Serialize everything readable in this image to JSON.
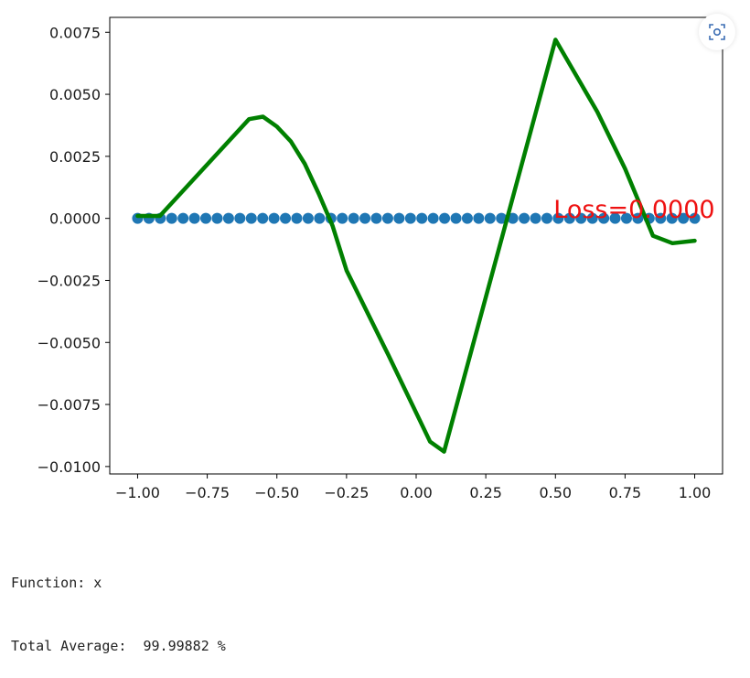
{
  "chart_data": {
    "type": "line",
    "xlim": [
      -1.1,
      1.1
    ],
    "ylim": [
      -0.0103,
      0.0081
    ],
    "xticks": [
      -1.0,
      -0.75,
      -0.5,
      -0.25,
      0.0,
      0.25,
      0.5,
      0.75,
      1.0
    ],
    "xtick_labels": [
      "−1.00",
      "−0.75",
      "−0.50",
      "−0.25",
      "0.00",
      "0.25",
      "0.50",
      "0.75",
      "1.00"
    ],
    "yticks": [
      0.0075,
      0.005,
      0.0025,
      0.0,
      -0.0025,
      -0.005,
      -0.0075,
      -0.01
    ],
    "ytick_labels": [
      "0.0075",
      "0.0050",
      "0.0025",
      "0.0000",
      "−0.0025",
      "−0.0050",
      "−0.0075",
      "−0.0100"
    ],
    "grid": false,
    "series": [
      {
        "kind": "scatter",
        "color": "#1f77b4",
        "x": [
          -1.0,
          -0.9592,
          -0.9184,
          -0.8776,
          -0.8367,
          -0.7959,
          -0.7551,
          -0.7143,
          -0.6735,
          -0.6327,
          -0.5918,
          -0.551,
          -0.5102,
          -0.4694,
          -0.4286,
          -0.3878,
          -0.3469,
          -0.3061,
          -0.2653,
          -0.2245,
          -0.1837,
          -0.1429,
          -0.102,
          -0.0612,
          -0.0204,
          0.0204,
          0.0612,
          0.102,
          0.1429,
          0.1837,
          0.2245,
          0.2653,
          0.3061,
          0.3469,
          0.3878,
          0.4286,
          0.4694,
          0.5102,
          0.551,
          0.5918,
          0.6327,
          0.6735,
          0.7143,
          0.7551,
          0.7959,
          0.8367,
          0.8776,
          0.9184,
          0.9592,
          1.0
        ],
        "y": [
          0,
          0,
          0,
          0,
          0,
          0,
          0,
          0,
          0,
          0,
          0,
          0,
          0,
          0,
          0,
          0,
          0,
          0,
          0,
          0,
          0,
          0,
          0,
          0,
          0,
          0,
          0,
          0,
          0,
          0,
          0,
          0,
          0,
          0,
          0,
          0,
          0,
          0,
          0,
          0,
          0,
          0,
          0,
          0,
          0,
          0,
          0,
          0,
          0,
          0
        ]
      },
      {
        "kind": "line",
        "color": "#008000",
        "x": [
          -1.0,
          -0.96,
          -0.92,
          -0.6,
          -0.55,
          -0.5,
          -0.45,
          -0.4,
          -0.35,
          -0.3,
          -0.25,
          -0.1,
          0.05,
          0.1,
          0.5,
          0.65,
          0.75,
          0.85,
          0.92,
          1.0
        ],
        "y": [
          0.0001,
          0.0001,
          0.0001,
          0.004,
          0.0041,
          0.0037,
          0.0031,
          0.0022,
          0.001,
          -0.0003,
          -0.0021,
          -0.0055,
          -0.009,
          -0.0094,
          0.0072,
          0.0043,
          0.002,
          -0.0007,
          -0.001,
          -0.0009
        ]
      }
    ],
    "annotation": {
      "text": "Loss=0.0000",
      "x": 0.5,
      "y": 3e-05,
      "color": "#ee1111"
    }
  },
  "output": {
    "line1": "Function: x",
    "line2": "Total Average:  99.99882 %"
  },
  "toolbar": {
    "copy_icon": "copy-image-icon"
  }
}
